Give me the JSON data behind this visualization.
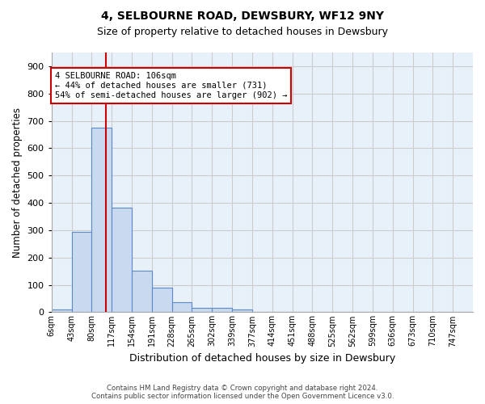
{
  "title1": "4, SELBOURNE ROAD, DEWSBURY, WF12 9NY",
  "title2": "Size of property relative to detached houses in Dewsbury",
  "xlabel": "Distribution of detached houses by size in Dewsbury",
  "ylabel": "Number of detached properties",
  "bin_labels": [
    "6sqm",
    "43sqm",
    "80sqm",
    "117sqm",
    "154sqm",
    "191sqm",
    "228sqm",
    "265sqm",
    "302sqm",
    "339sqm",
    "377sqm",
    "414sqm",
    "451sqm",
    "488sqm",
    "525sqm",
    "562sqm",
    "599sqm",
    "636sqm",
    "673sqm",
    "710sqm",
    "747sqm"
  ],
  "bar_values": [
    10,
    295,
    675,
    383,
    153,
    90,
    37,
    15,
    15,
    11,
    0,
    0,
    0,
    0,
    0,
    0,
    0,
    0,
    0,
    0,
    0
  ],
  "bar_color": "#c9d9f0",
  "bar_edge_color": "#5b8bc9",
  "vline_x": 106,
  "vline_color": "#cc0000",
  "annotation_text": "4 SELBOURNE ROAD: 106sqm\n← 44% of detached houses are smaller (731)\n54% of semi-detached houses are larger (902) →",
  "annotation_box_color": "#cc0000",
  "ylim": [
    0,
    950
  ],
  "yticks": [
    0,
    100,
    200,
    300,
    400,
    500,
    600,
    700,
    800,
    900
  ],
  "footer": "Contains HM Land Registry data © Crown copyright and database right 2024.\nContains public sector information licensed under the Open Government Licence v3.0.",
  "grid_color": "#cccccc",
  "bg_color": "#e8f0fa",
  "bin_width": 37
}
